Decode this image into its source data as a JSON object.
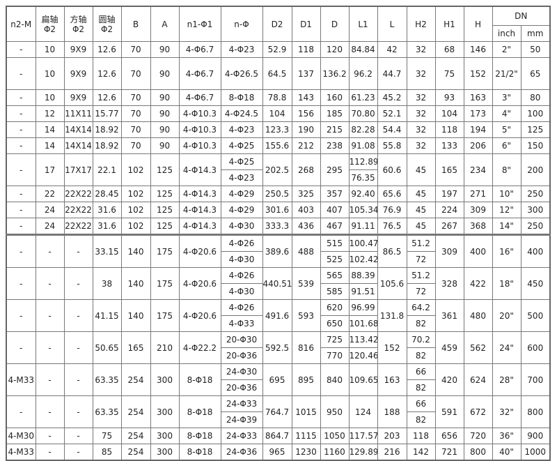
{
  "headers": {
    "dn": "DN",
    "mm": "mm",
    "inch": "inch",
    "cols": [
      {
        "l1": "H"
      },
      {
        "l1": "H1"
      },
      {
        "l1": "H2"
      },
      {
        "l1": "L"
      },
      {
        "l1": "L1"
      },
      {
        "l1": "D"
      },
      {
        "l1": "D1"
      },
      {
        "l1": "D2"
      },
      {
        "l1": "n-Φ"
      },
      {
        "l1": "n1-Φ1"
      },
      {
        "l1": "A"
      },
      {
        "l1": "B"
      },
      {
        "l1": "圆轴",
        "l2": "Φ2"
      },
      {
        "l1": "方轴",
        "l2": "Φ2"
      },
      {
        "l1": "扁轴",
        "l2": "Φ2"
      },
      {
        "l1": "n2-M"
      }
    ]
  },
  "rows": [
    [
      "50",
      "2\"",
      "146",
      "68",
      "32",
      "42",
      "84.84",
      "120",
      "118",
      "52.9",
      "4-Φ23",
      "4-Φ6.7",
      "90",
      "70",
      "12.6",
      "9X9",
      "10",
      "-"
    ],
    [
      "65",
      "21/2\"",
      "152",
      "75",
      "32",
      "44.7",
      "96.2",
      "136.2",
      "137",
      "64.5",
      "4-Φ26.5",
      "4-Φ6.7",
      "90",
      "70",
      "12.6",
      "9X9",
      "10",
      "-"
    ],
    [
      "80",
      "3\"",
      "163",
      "93",
      "32",
      "45.2",
      "61.23",
      "160",
      "143",
      "78.8",
      "8-Φ18",
      "4-Φ6.7",
      "90",
      "70",
      "12.6",
      "9X9",
      "10",
      "-"
    ],
    [
      "100",
      "4\"",
      "173",
      "104",
      "32",
      "52.1",
      "70.80",
      "185",
      "156",
      "104",
      "4-Φ24.5",
      "4-Φ10.3",
      "90",
      "70",
      "15.77",
      "11X11",
      "12",
      "-"
    ],
    [
      "125",
      "5\"",
      "194",
      "118",
      "32",
      "54.4",
      "82.28",
      "215",
      "190",
      "123.3",
      "4-Φ23",
      "4-Φ10.3",
      "90",
      "70",
      "18.92",
      "14X14",
      "14",
      "-"
    ],
    [
      "150",
      "6\"",
      "206",
      "133",
      "32",
      "55.8",
      "91.08",
      "238",
      "212",
      "155.6",
      "4-Φ25",
      "4-Φ10.3",
      "90",
      "70",
      "18.92",
      "14X14",
      "14",
      "-"
    ],
    [
      "200",
      "8\"",
      "234",
      "165",
      "45",
      "60.6",
      [
        "112.89",
        "76.35"
      ],
      "295",
      "268",
      "202.5",
      [
        "4-Φ25",
        "4-Φ23"
      ],
      "4-Φ14.3",
      "125",
      "102",
      "22.1",
      "17X17",
      "17",
      "-"
    ],
    [
      "250",
      "10\"",
      "271",
      "197",
      "45",
      "65.6",
      "92.40",
      "357",
      "325",
      "250.5",
      "4-Φ29",
      "4-Φ14.3",
      "125",
      "102",
      "28.45",
      "22X22",
      "22",
      "-"
    ],
    [
      "300",
      "12\"",
      "309",
      "224",
      "45",
      "76.9",
      "105.34",
      "407",
      "403",
      "301.6",
      "4-Φ29",
      "4-Φ14.3",
      "125",
      "102",
      "31.6",
      "22X22",
      "24",
      "-"
    ],
    [
      "250",
      "14\"",
      "368",
      "267",
      "45",
      "76.5",
      "91.11",
      "467",
      "436",
      "333.3",
      "4-Φ30",
      "4-Φ14.3",
      "125",
      "102",
      "31.6",
      "22X22",
      "24",
      "-"
    ],
    [
      "400",
      "16\"",
      "400",
      "309",
      [
        "51.2",
        "72"
      ],
      "86.5",
      [
        "100.47",
        "102.42"
      ],
      [
        "515",
        "525"
      ],
      "488",
      "389.6",
      [
        "4-Φ26",
        "4-Φ30"
      ],
      "4-Φ20.6",
      "175",
      "140",
      "33.15",
      "-",
      "-",
      "-"
    ],
    [
      "450",
      "18\"",
      "422",
      "328",
      [
        "51.2",
        "72"
      ],
      "105.6",
      [
        "88.39",
        "91.51"
      ],
      [
        "565",
        "585"
      ],
      "539",
      "440.51",
      [
        "4-Φ26",
        "4-Φ30"
      ],
      "4-Φ20.6",
      "175",
      "140",
      "38",
      "-",
      "-",
      "-"
    ],
    [
      "500",
      "20\"",
      "480",
      "361",
      [
        "64.2",
        "82"
      ],
      "131.8",
      [
        "96.99",
        "101.68"
      ],
      [
        "620",
        "650"
      ],
      "593",
      "491.6",
      [
        "4-Φ26",
        "4-Φ33"
      ],
      "4-Φ20.6",
      "175",
      "140",
      "41.15",
      "-",
      "-",
      "-"
    ],
    [
      "600",
      "24\"",
      "562",
      "459",
      [
        "70.2",
        "82"
      ],
      "152",
      [
        "113.42",
        "120.46"
      ],
      [
        "725",
        "770"
      ],
      "816",
      "592.5",
      [
        "20-Φ30",
        "20-Φ36"
      ],
      "4-Φ22.2",
      "210",
      "165",
      "50.65",
      "-",
      "-",
      "-"
    ],
    [
      "700",
      "28\"",
      "624",
      "420",
      [
        "66",
        "82"
      ],
      "163",
      "109.65",
      "840",
      "895",
      "695",
      [
        "24-Φ30",
        "20-Φ36"
      ],
      "8-Φ18",
      "300",
      "254",
      "63.35",
      "-",
      "-",
      "4-M33"
    ],
    [
      "800",
      "32\"",
      "672",
      "591",
      [
        "66",
        "82"
      ],
      "188",
      "124",
      "950",
      "1015",
      "764.7",
      [
        "24-Φ33",
        "24-Φ39"
      ],
      "8-Φ18",
      "300",
      "254",
      "63.35",
      "-",
      "-",
      "-"
    ],
    [
      "900",
      "36\"",
      "720",
      "656",
      "118",
      "203",
      "117.57",
      "1050",
      "1115",
      "864.7",
      "24-Φ33",
      "8-Φ18",
      "300",
      "254",
      "75",
      "-",
      "-",
      "4-M30"
    ],
    [
      "1000",
      "40\"",
      "800",
      "721",
      "142",
      "216",
      "129.89",
      "1160",
      "1230",
      "965",
      "24-Φ36",
      "8-Φ18",
      "300",
      "254",
      "85",
      "-",
      "-",
      "4-M33"
    ]
  ]
}
